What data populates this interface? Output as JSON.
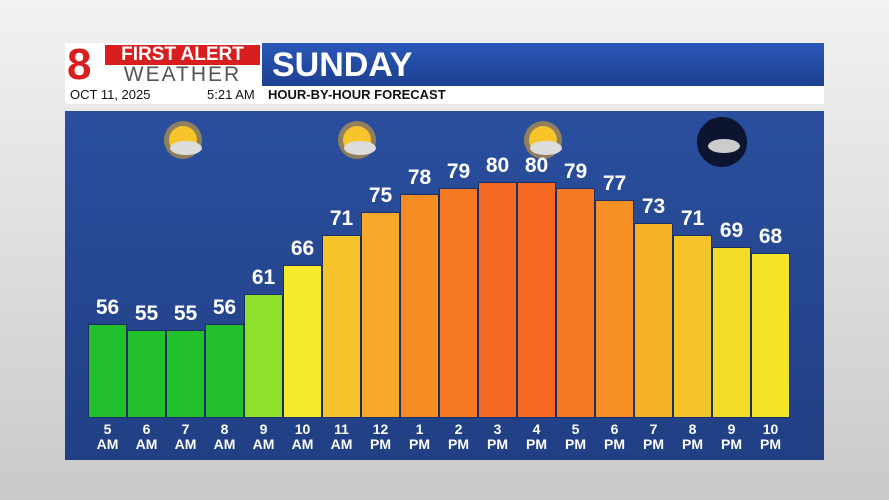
{
  "header": {
    "brand_top": "FIRST ALERT",
    "brand_bottom": "WEATHER",
    "day": "SUNDAY",
    "date": "OCT 11, 2025",
    "time": "5:21 AM",
    "subtitle": "HOUR-BY-HOUR FORECAST"
  },
  "chart_data": {
    "type": "bar",
    "categories": [
      "5 AM",
      "6 AM",
      "7 AM",
      "8 AM",
      "9 AM",
      "10 AM",
      "11 AM",
      "12 PM",
      "1 PM",
      "2 PM",
      "3 PM",
      "4 PM",
      "5 PM",
      "6 PM",
      "7 PM",
      "8 PM",
      "9 PM",
      "10 PM"
    ],
    "values": [
      56,
      55,
      55,
      56,
      61,
      66,
      71,
      75,
      78,
      79,
      80,
      80,
      79,
      77,
      73,
      71,
      69,
      68
    ],
    "colors": [
      "#22c02a",
      "#22c02a",
      "#22c02a",
      "#22c02a",
      "#8ee02a",
      "#f7ea2c",
      "#f5c42a",
      "#f5a82a",
      "#f58c24",
      "#f67a22",
      "#f56a22",
      "#f56a22",
      "#f67a22",
      "#f59025",
      "#f5b028",
      "#f5c42a",
      "#f5dc2a",
      "#f5e52a"
    ],
    "ylim": [
      40,
      90
    ]
  }
}
